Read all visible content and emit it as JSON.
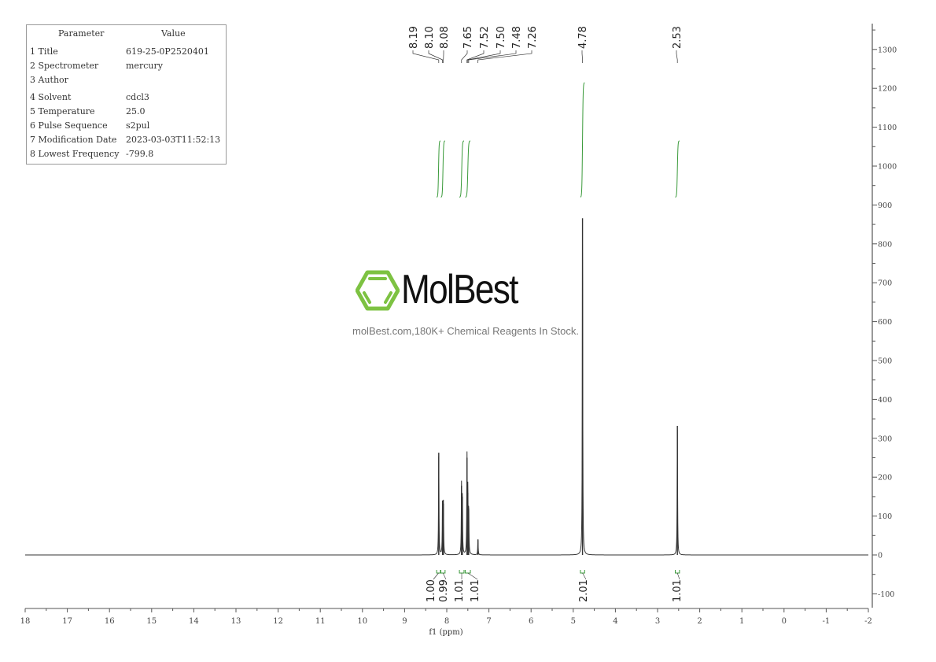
{
  "parameters": {
    "header": [
      "Parameter",
      "Value"
    ],
    "rows": [
      {
        "label": "1 Title",
        "value": "619-25-0P2520401"
      },
      {
        "label": "2 Spectrometer",
        "value": "mercury"
      },
      {
        "label": "3 Author",
        "value": ""
      },
      {
        "label": "4 Solvent",
        "value": "cdcl3"
      },
      {
        "label": "5 Temperature",
        "value": "25.0"
      },
      {
        "label": "6 Pulse Sequence",
        "value": "s2pul"
      },
      {
        "label": "7 Modification Date",
        "value": "2023-03-03T11:52:13"
      },
      {
        "label": "8 Lowest Frequency",
        "value": "-799.8"
      }
    ]
  },
  "watermark": {
    "brand": "MolBest",
    "tagline": "molBest.com,180K+ Chemical Reagents In Stock."
  },
  "colors": {
    "spectrum": "#333333",
    "integral": "#3a9a3a",
    "logo": "#7dc242"
  },
  "chart_data": {
    "type": "line",
    "xlabel": "f1 (ppm)",
    "xlim": [
      18,
      -2
    ],
    "ylim": [
      -130,
      1370
    ],
    "x_ticks": [
      "18",
      "17",
      "16",
      "15",
      "14",
      "13",
      "12",
      "11",
      "10",
      "9",
      "8",
      "7",
      "6",
      "5",
      "4",
      "3",
      "2",
      "1",
      "0",
      "-1",
      "-2"
    ],
    "y_ticks": [
      "-100",
      "0",
      "100",
      "200",
      "300",
      "400",
      "500",
      "600",
      "700",
      "800",
      "900",
      "1000",
      "1100",
      "1200",
      "1300"
    ],
    "grid": false,
    "peaks": [
      {
        "ppm": 8.19,
        "height": 263
      },
      {
        "ppm": 8.1,
        "height": 140
      },
      {
        "ppm": 8.08,
        "height": 132
      },
      {
        "ppm": 7.65,
        "height": 178
      },
      {
        "ppm": 7.63,
        "height": 150
      },
      {
        "ppm": 7.52,
        "height": 250
      },
      {
        "ppm": 7.5,
        "height": 160
      },
      {
        "ppm": 7.48,
        "height": 118
      },
      {
        "ppm": 7.26,
        "height": 40
      },
      {
        "ppm": 4.78,
        "height": 866
      },
      {
        "ppm": 2.53,
        "height": 332
      }
    ],
    "peak_labels": [
      "8.19",
      "8.10",
      "8.08",
      "7.65",
      "7.52",
      "7.50",
      "7.48",
      "7.26",
      "4.78",
      "2.53"
    ],
    "integrals": [
      {
        "from": 8.24,
        "to": 8.15,
        "value": "1.00",
        "curve": [
          920,
          1065
        ]
      },
      {
        "from": 8.14,
        "to": 8.04,
        "value": "0.99",
        "curve": [
          920,
          1065
        ]
      },
      {
        "from": 7.7,
        "to": 7.59,
        "value": "1.01",
        "curve": [
          920,
          1065
        ]
      },
      {
        "from": 7.56,
        "to": 7.44,
        "value": "1.01",
        "curve": [
          920,
          1065
        ]
      },
      {
        "from": 4.83,
        "to": 4.73,
        "value": "2.01",
        "curve": [
          920,
          1215
        ]
      },
      {
        "from": 2.58,
        "to": 2.48,
        "value": "1.01",
        "curve": [
          920,
          1065
        ]
      }
    ]
  }
}
